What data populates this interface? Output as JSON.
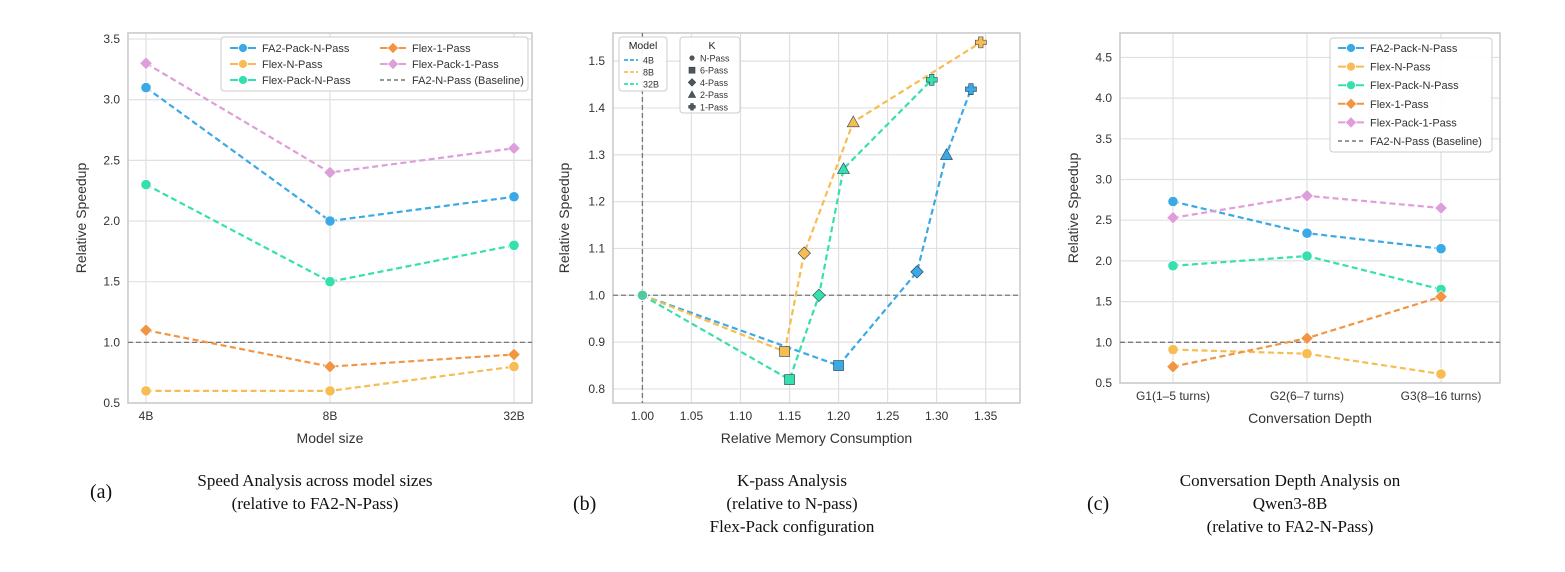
{
  "colors": {
    "FA2-Pack-N-Pass": "#3aa9e6",
    "Flex-N-Pass": "#f7bd52",
    "Flex-Pack-N-Pass": "#36e0ae",
    "Flex-1-Pass": "#f29542",
    "Flex-Pack-1-Pass": "#dd9ed9",
    "baseline": "#777777",
    "grid": "#e0e0e0",
    "frame": "#cccccc"
  },
  "chart_data": [
    {
      "type": "line",
      "caption_label": "(a)",
      "caption_lines": [
        "Speed Analysis across model sizes",
        "(relative to FA2-N-Pass)"
      ],
      "categories": [
        "4B",
        "8B",
        "32B"
      ],
      "xlabel": "Model size",
      "ylabel": "Relative Speedup",
      "ylim": [
        0.5,
        3.55
      ],
      "yticks": [
        "0.5",
        "1.0",
        "1.5",
        "2.0",
        "2.5",
        "3.0",
        "3.5"
      ],
      "legend_placement": "top-right",
      "series": [
        {
          "name": "FA2-Pack-N-Pass",
          "marker": "circle",
          "values": [
            3.1,
            2.0,
            2.2
          ]
        },
        {
          "name": "Flex-N-Pass",
          "marker": "circle",
          "values": [
            0.6,
            0.6,
            0.8
          ]
        },
        {
          "name": "Flex-Pack-N-Pass",
          "marker": "circle",
          "values": [
            2.3,
            1.5,
            1.8
          ]
        },
        {
          "name": "Flex-1-Pass",
          "marker": "diamond",
          "values": [
            1.1,
            0.8,
            0.9
          ]
        },
        {
          "name": "Flex-Pack-1-Pass",
          "marker": "diamond",
          "values": [
            3.3,
            2.4,
            2.6
          ]
        }
      ],
      "baseline": {
        "name": "FA2-N-Pass (Baseline)",
        "value": 1.0
      }
    },
    {
      "type": "line",
      "caption_label": "(b)",
      "caption_lines": [
        "K-pass Analysis",
        "(relative to N-pass)",
        "Flex-Pack configuration"
      ],
      "xlabel": "Relative Memory Consumption",
      "ylabel": "Relative Speedup",
      "xlim": [
        0.97,
        1.385
      ],
      "ylim": [
        0.77,
        1.56
      ],
      "xticks": [
        "1.00",
        "1.05",
        "1.10",
        "1.15",
        "1.20",
        "1.25",
        "1.30",
        "1.35"
      ],
      "yticks": [
        "0.8",
        "0.9",
        "1.0",
        "1.1",
        "1.2",
        "1.3",
        "1.4",
        "1.5"
      ],
      "legend_model_title": "Model",
      "legend_k_title": "K",
      "legend_placement": "top-left",
      "k_legend": [
        {
          "label": "N-Pass",
          "marker": "circle"
        },
        {
          "label": "6-Pass",
          "marker": "square"
        },
        {
          "label": "4-Pass",
          "marker": "diamond"
        },
        {
          "label": "2-Pass",
          "marker": "triangle"
        },
        {
          "label": "1-Pass",
          "marker": "plus"
        }
      ],
      "reference_lines": {
        "x": 1.0,
        "y": 1.0
      },
      "series": [
        {
          "name": "4B",
          "color": "#3aa9e6",
          "points": [
            {
              "x": 1.0,
              "y": 1.0,
              "marker": "circle"
            },
            {
              "x": 1.2,
              "y": 0.85,
              "marker": "square"
            },
            {
              "x": 1.28,
              "y": 1.05,
              "marker": "diamond"
            },
            {
              "x": 1.31,
              "y": 1.3,
              "marker": "triangle"
            },
            {
              "x": 1.335,
              "y": 1.44,
              "marker": "plus"
            }
          ]
        },
        {
          "name": "8B",
          "color": "#f7bd52",
          "points": [
            {
              "x": 1.0,
              "y": 1.0,
              "marker": "circle"
            },
            {
              "x": 1.145,
              "y": 0.88,
              "marker": "square"
            },
            {
              "x": 1.165,
              "y": 1.09,
              "marker": "diamond"
            },
            {
              "x": 1.215,
              "y": 1.37,
              "marker": "triangle"
            },
            {
              "x": 1.345,
              "y": 1.54,
              "marker": "plus"
            }
          ]
        },
        {
          "name": "32B",
          "color": "#36e0ae",
          "points": [
            {
              "x": 1.0,
              "y": 1.0,
              "marker": "circle"
            },
            {
              "x": 1.15,
              "y": 0.82,
              "marker": "square"
            },
            {
              "x": 1.18,
              "y": 1.0,
              "marker": "diamond"
            },
            {
              "x": 1.205,
              "y": 1.27,
              "marker": "triangle"
            },
            {
              "x": 1.295,
              "y": 1.46,
              "marker": "plus"
            }
          ]
        }
      ]
    },
    {
      "type": "line",
      "caption_label": "(c)",
      "caption_lines": [
        "Conversation Depth Analysis on",
        "Qwen3-8B",
        "(relative to FA2-N-Pass)"
      ],
      "categories": [
        "G1(1–5 turns)",
        "G2(6–7 turns)",
        "G3(8–16 turns)"
      ],
      "xlabel": "Conversation Depth",
      "ylabel": "Relative Speedup",
      "ylim": [
        0.5,
        4.8
      ],
      "yticks": [
        "0.5",
        "1.0",
        "1.5",
        "2.0",
        "2.5",
        "3.0",
        "3.5",
        "4.0",
        "4.5"
      ],
      "legend_placement": "top-right",
      "series": [
        {
          "name": "FA2-Pack-N-Pass",
          "marker": "circle",
          "values": [
            2.73,
            2.34,
            2.15
          ]
        },
        {
          "name": "Flex-N-Pass",
          "marker": "circle",
          "values": [
            0.91,
            0.86,
            0.61
          ]
        },
        {
          "name": "Flex-Pack-N-Pass",
          "marker": "circle",
          "values": [
            1.94,
            2.06,
            1.65
          ]
        },
        {
          "name": "Flex-1-Pass",
          "marker": "diamond",
          "values": [
            0.7,
            1.05,
            1.56
          ]
        },
        {
          "name": "Flex-Pack-1-Pass",
          "marker": "diamond",
          "values": [
            2.53,
            2.8,
            2.65
          ]
        }
      ],
      "baseline": {
        "name": "FA2-N-Pass (Baseline)",
        "value": 1.0
      }
    }
  ]
}
